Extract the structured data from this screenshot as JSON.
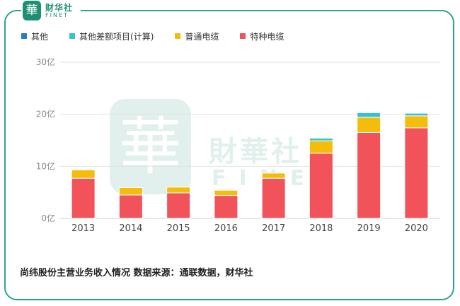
{
  "logo": {
    "seal_char": "華",
    "name_cn": "财华社",
    "name_en": "FINET"
  },
  "watermark": {
    "seal_char": "華",
    "name_cn": "財華社",
    "name_en": "FINET"
  },
  "colors": {
    "frame": "#2ca58d",
    "grid": "#e3e3e3",
    "axis": "#cfcfcf",
    "tick_text": "#888888",
    "year_text": "#444444"
  },
  "caption": "尚纬股份主营业务收入情况 数据来源：通联数据，财华社",
  "chart_data": {
    "type": "bar",
    "stacked": true,
    "title": "",
    "xlabel": "",
    "ylabel": "",
    "ylim": [
      0,
      30
    ],
    "yticks": [
      0,
      10,
      20,
      30
    ],
    "ytick_labels": [
      "0亿",
      "10亿",
      "20亿",
      "30亿"
    ],
    "grid": true,
    "legend_position": "top-left",
    "categories": [
      "2013",
      "2014",
      "2015",
      "2016",
      "2017",
      "2018",
      "2019",
      "2020"
    ],
    "series": [
      {
        "name": "其他",
        "color": "#2b7bc4",
        "values": [
          0,
          0,
          0,
          0,
          0,
          0,
          0,
          0
        ]
      },
      {
        "name": "其他差额项目(计算)",
        "color": "#35c3d1",
        "values": [
          0,
          0,
          0,
          0,
          0,
          0.5,
          0.9,
          0.5
        ]
      },
      {
        "name": "普通电缆",
        "color": "#f5bd0b",
        "values": [
          1.6,
          1.4,
          1.1,
          1.0,
          1.0,
          2.4,
          2.9,
          2.3
        ]
      },
      {
        "name": "特种电缆",
        "color": "#f2535b",
        "values": [
          7.7,
          4.5,
          4.9,
          4.4,
          7.7,
          12.5,
          16.5,
          17.4
        ]
      }
    ]
  }
}
